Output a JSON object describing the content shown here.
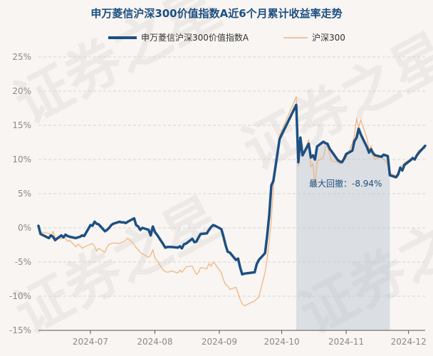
{
  "chart_data": {
    "type": "line",
    "title": "申万菱信沪深300价值指数A近6个月累计收益率走势",
    "watermark": "证券之星",
    "xlabel": "",
    "ylabel": "",
    "ylim": [
      -15,
      25
    ],
    "yticks": [
      "25%",
      "20%",
      "15%",
      "10%",
      "5%",
      "0%",
      "-5%",
      "-10%",
      "-15%"
    ],
    "xticks": [
      {
        "date": "2024-07-01",
        "label": "2024-07"
      },
      {
        "date": "2024-08-01",
        "label": "2024-08"
      },
      {
        "date": "2024-09-01",
        "label": "2024-09"
      },
      {
        "date": "2024-10-01",
        "label": "2024-10"
      },
      {
        "date": "2024-11-01",
        "label": "2024-11"
      },
      {
        "date": "2024-12-01",
        "label": "2024-12"
      }
    ],
    "x_range": [
      "2024-06-06",
      "2024-12-09"
    ],
    "grid": true,
    "legend_position": "top",
    "drawdown": {
      "label": "最大回撤：-8.94%",
      "value": -8.94,
      "start": "2024-10-08",
      "end": "2024-11-22",
      "color": "#b7c3cf"
    },
    "series": [
      {
        "name": "申万菱信沪深300价值指数A",
        "color": "#1d4f82",
        "points": [
          [
            "2024-06-06",
            0.3
          ],
          [
            "2024-06-07",
            -0.9
          ],
          [
            "2024-06-11",
            -1.5
          ],
          [
            "2024-06-12",
            -1.1
          ],
          [
            "2024-06-13",
            -1.3
          ],
          [
            "2024-06-14",
            -1.8
          ],
          [
            "2024-06-17",
            -1.1
          ],
          [
            "2024-06-18",
            -1.4
          ],
          [
            "2024-06-19",
            -1.0
          ],
          [
            "2024-06-20",
            -1.2
          ],
          [
            "2024-06-21",
            -1.3
          ],
          [
            "2024-06-24",
            -1.5
          ],
          [
            "2024-06-25",
            -1.4
          ],
          [
            "2024-06-26",
            -1.3
          ],
          [
            "2024-06-27",
            -1.1
          ],
          [
            "2024-06-28",
            -1.2
          ],
          [
            "2024-07-01",
            0.4
          ],
          [
            "2024-07-02",
            0.3
          ],
          [
            "2024-07-03",
            0.9
          ],
          [
            "2024-07-04",
            0.6
          ],
          [
            "2024-07-05",
            0.5
          ],
          [
            "2024-07-08",
            -0.5
          ],
          [
            "2024-07-09",
            -0.3
          ],
          [
            "2024-07-10",
            0.0
          ],
          [
            "2024-07-11",
            0.4
          ],
          [
            "2024-07-12",
            0.6
          ],
          [
            "2024-07-15",
            0.9
          ],
          [
            "2024-07-16",
            0.8
          ],
          [
            "2024-07-17",
            0.8
          ],
          [
            "2024-07-18",
            0.7
          ],
          [
            "2024-07-19",
            0.9
          ],
          [
            "2024-07-22",
            1.4
          ],
          [
            "2024-07-23",
            0.4
          ],
          [
            "2024-07-24",
            0.2
          ],
          [
            "2024-07-25",
            -0.3
          ],
          [
            "2024-07-26",
            0.0
          ],
          [
            "2024-07-29",
            -0.3
          ],
          [
            "2024-07-30",
            -1.1
          ],
          [
            "2024-07-31",
            0.2
          ],
          [
            "2024-08-01",
            -0.6
          ],
          [
            "2024-08-02",
            -1.0
          ],
          [
            "2024-08-05",
            -2.4
          ],
          [
            "2024-08-06",
            -2.9
          ],
          [
            "2024-08-07",
            -2.8
          ],
          [
            "2024-08-08",
            -2.8
          ],
          [
            "2024-08-09",
            -2.8
          ],
          [
            "2024-08-12",
            -2.9
          ],
          [
            "2024-08-13",
            -2.7
          ],
          [
            "2024-08-14",
            -3.0
          ],
          [
            "2024-08-15",
            -2.4
          ],
          [
            "2024-08-16",
            -2.3
          ],
          [
            "2024-08-19",
            -1.6
          ],
          [
            "2024-08-20",
            -2.1
          ],
          [
            "2024-08-21",
            -2.0
          ],
          [
            "2024-08-22",
            -1.4
          ],
          [
            "2024-08-23",
            -0.9
          ],
          [
            "2024-08-26",
            -0.8
          ],
          [
            "2024-08-27",
            -0.3
          ],
          [
            "2024-08-28",
            0.1
          ],
          [
            "2024-08-29",
            0.4
          ],
          [
            "2024-08-30",
            0.3
          ],
          [
            "2024-09-02",
            -0.2
          ],
          [
            "2024-09-03",
            -1.3
          ],
          [
            "2024-09-04",
            -2.5
          ],
          [
            "2024-09-05",
            -3.5
          ],
          [
            "2024-09-06",
            -3.6
          ],
          [
            "2024-09-09",
            -4.7
          ],
          [
            "2024-09-10",
            -4.5
          ],
          [
            "2024-09-11",
            -5.8
          ],
          [
            "2024-09-12",
            -6.8
          ],
          [
            "2024-09-13",
            -6.7
          ],
          [
            "2024-09-18",
            -6.5
          ],
          [
            "2024-09-19",
            -5.3
          ],
          [
            "2024-09-20",
            -4.7
          ],
          [
            "2024-09-23",
            -3.7
          ],
          [
            "2024-09-24",
            -1.2
          ],
          [
            "2024-09-25",
            1.8
          ],
          [
            "2024-09-26",
            6.2
          ],
          [
            "2024-09-27",
            6.9
          ],
          [
            "2024-09-30",
            13.0
          ],
          [
            "2024-10-08",
            18.0
          ],
          [
            "2024-10-09",
            9.6
          ],
          [
            "2024-10-10",
            13.2
          ],
          [
            "2024-10-11",
            10.6
          ],
          [
            "2024-10-14",
            12.3
          ],
          [
            "2024-10-15",
            10.3
          ],
          [
            "2024-10-16",
            10.6
          ],
          [
            "2024-10-17",
            10.0
          ],
          [
            "2024-10-18",
            11.9
          ],
          [
            "2024-10-21",
            12.6
          ],
          [
            "2024-10-22",
            12.4
          ],
          [
            "2024-10-23",
            12.3
          ],
          [
            "2024-10-24",
            11.6
          ],
          [
            "2024-10-25",
            11.2
          ],
          [
            "2024-10-28",
            9.9
          ],
          [
            "2024-10-29",
            9.7
          ],
          [
            "2024-10-30",
            9.6
          ],
          [
            "2024-10-31",
            10.1
          ],
          [
            "2024-11-01",
            10.8
          ],
          [
            "2024-11-04",
            11.3
          ],
          [
            "2024-11-05",
            12.7
          ],
          [
            "2024-11-06",
            13.2
          ],
          [
            "2024-11-07",
            14.5
          ],
          [
            "2024-11-08",
            13.7
          ],
          [
            "2024-11-11",
            11.8
          ],
          [
            "2024-11-12",
            11.0
          ],
          [
            "2024-11-13",
            11.5
          ],
          [
            "2024-11-14",
            10.9
          ],
          [
            "2024-11-15",
            10.6
          ],
          [
            "2024-11-18",
            10.4
          ],
          [
            "2024-11-19",
            10.7
          ],
          [
            "2024-11-20",
            10.6
          ],
          [
            "2024-11-21",
            10.5
          ],
          [
            "2024-11-22",
            7.7
          ],
          [
            "2024-11-25",
            7.4
          ],
          [
            "2024-11-26",
            7.8
          ],
          [
            "2024-11-27",
            8.8
          ],
          [
            "2024-11-28",
            8.4
          ],
          [
            "2024-11-29",
            9.2
          ],
          [
            "2024-12-02",
            9.9
          ],
          [
            "2024-12-03",
            10.2
          ],
          [
            "2024-12-04",
            10.0
          ],
          [
            "2024-12-05",
            10.6
          ],
          [
            "2024-12-06",
            11.0
          ],
          [
            "2024-12-09",
            12.0
          ]
        ]
      },
      {
        "name": "沪深300",
        "color": "#f0b27a",
        "points": [
          [
            "2024-06-06",
            -0.2
          ],
          [
            "2024-06-07",
            -0.6
          ],
          [
            "2024-06-11",
            -0.8
          ],
          [
            "2024-06-12",
            -1.3
          ],
          [
            "2024-06-13",
            -0.5
          ],
          [
            "2024-06-14",
            -1.4
          ],
          [
            "2024-06-17",
            -1.6
          ],
          [
            "2024-06-18",
            -1.2
          ],
          [
            "2024-06-19",
            -1.5
          ],
          [
            "2024-06-20",
            -2.0
          ],
          [
            "2024-06-21",
            -1.8
          ],
          [
            "2024-06-24",
            -2.8
          ],
          [
            "2024-06-25",
            -2.4
          ],
          [
            "2024-06-26",
            -2.6
          ],
          [
            "2024-06-27",
            -3.0
          ],
          [
            "2024-06-28",
            -2.8
          ],
          [
            "2024-07-01",
            -2.4
          ],
          [
            "2024-07-02",
            -2.3
          ],
          [
            "2024-07-03",
            -2.7
          ],
          [
            "2024-07-04",
            -3.4
          ],
          [
            "2024-07-05",
            -3.0
          ],
          [
            "2024-07-08",
            -3.6
          ],
          [
            "2024-07-09",
            -2.8
          ],
          [
            "2024-07-10",
            -2.4
          ],
          [
            "2024-07-11",
            -2.3
          ],
          [
            "2024-07-12",
            -2.2
          ],
          [
            "2024-07-15",
            -2.3
          ],
          [
            "2024-07-16",
            -2.1
          ],
          [
            "2024-07-17",
            -2.0
          ],
          [
            "2024-07-18",
            -1.8
          ],
          [
            "2024-07-19",
            -1.5
          ],
          [
            "2024-07-22",
            -2.4
          ],
          [
            "2024-07-23",
            -2.9
          ],
          [
            "2024-07-24",
            -3.2
          ],
          [
            "2024-07-25",
            -3.6
          ],
          [
            "2024-07-26",
            -3.8
          ],
          [
            "2024-07-29",
            -4.3
          ],
          [
            "2024-07-30",
            -4.0
          ],
          [
            "2024-07-31",
            -3.2
          ],
          [
            "2024-08-01",
            -4.4
          ],
          [
            "2024-08-02",
            -4.8
          ],
          [
            "2024-08-05",
            -6.2
          ],
          [
            "2024-08-06",
            -6.4
          ],
          [
            "2024-08-07",
            -6.5
          ],
          [
            "2024-08-08",
            -6.4
          ],
          [
            "2024-08-09",
            -6.3
          ],
          [
            "2024-08-12",
            -6.6
          ],
          [
            "2024-08-13",
            -6.2
          ],
          [
            "2024-08-14",
            -6.5
          ],
          [
            "2024-08-15",
            -6.1
          ],
          [
            "2024-08-16",
            -5.7
          ],
          [
            "2024-08-19",
            -5.6
          ],
          [
            "2024-08-20",
            -6.3
          ],
          [
            "2024-08-21",
            -6.8
          ],
          [
            "2024-08-22",
            -6.5
          ],
          [
            "2024-08-23",
            -5.8
          ],
          [
            "2024-08-26",
            -6.0
          ],
          [
            "2024-08-27",
            -5.2
          ],
          [
            "2024-08-28",
            -5.6
          ],
          [
            "2024-08-29",
            -5.0
          ],
          [
            "2024-08-30",
            -5.3
          ],
          [
            "2024-09-02",
            -6.6
          ],
          [
            "2024-09-03",
            -7.6
          ],
          [
            "2024-09-04",
            -8.3
          ],
          [
            "2024-09-05",
            -8.5
          ],
          [
            "2024-09-06",
            -9.0
          ],
          [
            "2024-09-09",
            -8.7
          ],
          [
            "2024-09-10",
            -9.5
          ],
          [
            "2024-09-11",
            -10.5
          ],
          [
            "2024-09-12",
            -11.1
          ],
          [
            "2024-09-13",
            -11.4
          ],
          [
            "2024-09-18",
            -10.7
          ],
          [
            "2024-09-19",
            -10.4
          ],
          [
            "2024-09-20",
            -10.1
          ],
          [
            "2024-09-23",
            -6.5
          ],
          [
            "2024-09-24",
            -4.6
          ],
          [
            "2024-09-25",
            -2.0
          ],
          [
            "2024-09-26",
            1.2
          ],
          [
            "2024-09-27",
            5.9
          ],
          [
            "2024-09-30",
            13.5
          ],
          [
            "2024-10-08",
            19.2
          ],
          [
            "2024-10-09",
            9.0
          ],
          [
            "2024-10-10",
            12.7
          ],
          [
            "2024-10-11",
            10.5
          ],
          [
            "2024-10-14",
            12.9
          ],
          [
            "2024-10-15",
            8.9
          ],
          [
            "2024-10-16",
            9.4
          ],
          [
            "2024-10-17",
            6.1
          ],
          [
            "2024-10-18",
            9.7
          ],
          [
            "2024-10-21",
            10.3
          ],
          [
            "2024-10-22",
            11.8
          ],
          [
            "2024-10-23",
            12.2
          ],
          [
            "2024-10-24",
            10.9
          ],
          [
            "2024-10-25",
            9.8
          ],
          [
            "2024-10-28",
            9.6
          ],
          [
            "2024-10-29",
            9.3
          ],
          [
            "2024-10-30",
            9.6
          ],
          [
            "2024-10-31",
            9.9
          ],
          [
            "2024-11-01",
            10.2
          ],
          [
            "2024-11-04",
            12.4
          ],
          [
            "2024-11-05",
            13.5
          ],
          [
            "2024-11-06",
            16.0
          ],
          [
            "2024-11-07",
            14.6
          ],
          [
            "2024-11-08",
            15.8
          ],
          [
            "2024-11-11",
            13.1
          ],
          [
            "2024-11-12",
            11.4
          ],
          [
            "2024-11-13",
            12.0
          ],
          [
            "2024-11-14",
            10.4
          ],
          [
            "2024-11-15",
            10.0
          ],
          [
            "2024-11-18",
            10.5
          ],
          [
            "2024-11-19",
            10.0
          ],
          [
            "2024-11-20",
            9.8
          ],
          [
            "2024-11-21",
            9.2
          ],
          [
            "2024-11-22",
            8.0
          ],
          [
            "2024-11-25",
            7.6
          ],
          [
            "2024-11-26",
            8.1
          ],
          [
            "2024-11-27",
            9.0
          ],
          [
            "2024-11-28",
            9.1
          ],
          [
            "2024-11-29",
            9.5
          ],
          [
            "2024-12-02",
            10.1
          ],
          [
            "2024-12-03",
            10.4
          ],
          [
            "2024-12-04",
            10.0
          ],
          [
            "2024-12-05",
            10.8
          ],
          [
            "2024-12-06",
            11.4
          ],
          [
            "2024-12-09",
            11.6
          ]
        ]
      }
    ]
  }
}
